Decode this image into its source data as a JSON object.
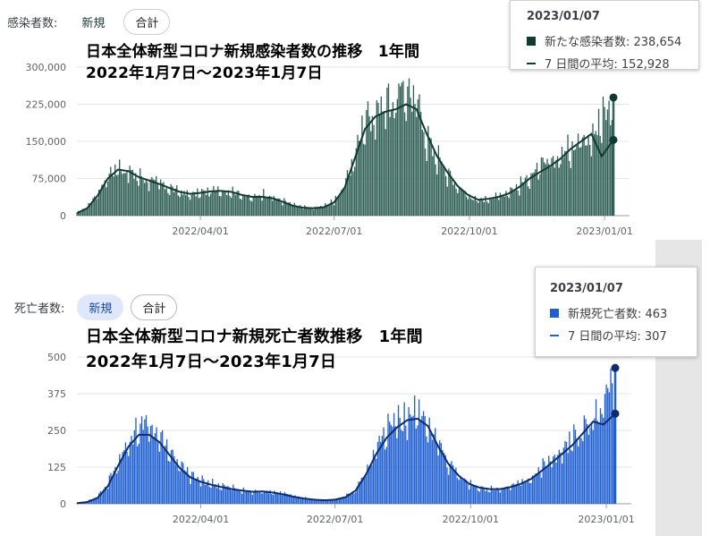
{
  "top": {
    "filter": {
      "label": "感染者数:",
      "chips": [
        "新規",
        "合計"
      ]
    },
    "title": [
      "日本全体新型コロナ新規感染者数の推移　1年間",
      "2022年1月7日～2023年1月7日"
    ],
    "tooltip": {
      "date": "2023/01/07",
      "rows": [
        {
          "label": "新たな感染者数: 238,654"
        },
        {
          "label": "7 日間の平均: 152,928"
        }
      ]
    }
  },
  "bottom": {
    "filter": {
      "label": "死亡者数:",
      "chips": [
        "新規",
        "合計"
      ]
    },
    "title": [
      "日本全体新型コロナ新規死亡者数推移　1年間",
      "2022年1月7日～2023年1月7日"
    ],
    "tooltip": {
      "date": "2023/01/07",
      "rows": [
        {
          "label": "新規死亡者数: 463"
        },
        {
          "label": "7 日間の平均: 307"
        }
      ]
    }
  },
  "colors": {
    "cases_bar": "#2f5f55",
    "cases_line": "#0f3b33",
    "deaths_bar": "#1f5fd1",
    "deaths_line": "#0d2c70"
  },
  "chart_data": [
    {
      "type": "bar",
      "title": "",
      "x_type": "date",
      "x_range": [
        "2022-01-07",
        "2023-01-07"
      ],
      "xticks": [
        "2022/04/01",
        "2022/07/01",
        "2022/10/01",
        "2023/01/01"
      ],
      "yticks": [
        "0",
        "75,000",
        "150,000",
        "225,000",
        "300,000"
      ],
      "ylim": [
        0,
        300000
      ],
      "series": [
        {
          "name": "新たな感染者数",
          "kind": "bar",
          "points": [
            [
              "2022-01-07",
              6000
            ],
            [
              "2022-01-14",
              18000
            ],
            [
              "2022-01-21",
              45000
            ],
            [
              "2022-01-28",
              80000
            ],
            [
              "2022-02-04",
              100000
            ],
            [
              "2022-02-11",
              88000
            ],
            [
              "2022-02-18",
              80000
            ],
            [
              "2022-02-25",
              72000
            ],
            [
              "2022-03-04",
              65000
            ],
            [
              "2022-03-11",
              56000
            ],
            [
              "2022-03-18",
              48000
            ],
            [
              "2022-03-25",
              42000
            ],
            [
              "2022-04-01",
              46000
            ],
            [
              "2022-04-08",
              50000
            ],
            [
              "2022-04-15",
              51000
            ],
            [
              "2022-04-22",
              50000
            ],
            [
              "2022-04-29",
              44000
            ],
            [
              "2022-05-06",
              35000
            ],
            [
              "2022-05-13",
              45000
            ],
            [
              "2022-05-20",
              38000
            ],
            [
              "2022-05-27",
              30000
            ],
            [
              "2022-06-03",
              22000
            ],
            [
              "2022-06-10",
              17000
            ],
            [
              "2022-06-17",
              15000
            ],
            [
              "2022-06-24",
              20000
            ],
            [
              "2022-07-01",
              30000
            ],
            [
              "2022-07-08",
              60000
            ],
            [
              "2022-07-15",
              120000
            ],
            [
              "2022-07-22",
              195000
            ],
            [
              "2022-07-29",
              215000
            ],
            [
              "2022-08-05",
              230000
            ],
            [
              "2022-08-12",
              235000
            ],
            [
              "2022-08-19",
              260000
            ],
            [
              "2022-08-26",
              230000
            ],
            [
              "2022-09-02",
              160000
            ],
            [
              "2022-09-09",
              120000
            ],
            [
              "2022-09-16",
              85000
            ],
            [
              "2022-09-23",
              58000
            ],
            [
              "2022-09-30",
              42000
            ],
            [
              "2022-10-07",
              30000
            ],
            [
              "2022-10-14",
              35000
            ],
            [
              "2022-10-21",
              40000
            ],
            [
              "2022-10-28",
              50000
            ],
            [
              "2022-11-04",
              60000
            ],
            [
              "2022-11-11",
              80000
            ],
            [
              "2022-11-18",
              95000
            ],
            [
              "2022-11-25",
              110000
            ],
            [
              "2022-12-02",
              120000
            ],
            [
              "2022-12-09",
              140000
            ],
            [
              "2022-12-16",
              160000
            ],
            [
              "2022-12-23",
              175000
            ],
            [
              "2022-12-30",
              190000
            ],
            [
              "2023-01-07",
              238654
            ]
          ]
        },
        {
          "name": "7 日間の平均",
          "kind": "line",
          "points": [
            [
              "2022-01-07",
              5000
            ],
            [
              "2022-01-14",
              15000
            ],
            [
              "2022-01-21",
              40000
            ],
            [
              "2022-01-28",
              75000
            ],
            [
              "2022-02-04",
              93000
            ],
            [
              "2022-02-11",
              90000
            ],
            [
              "2022-02-18",
              78000
            ],
            [
              "2022-02-25",
              71000
            ],
            [
              "2022-03-04",
              64000
            ],
            [
              "2022-03-11",
              56000
            ],
            [
              "2022-03-18",
              48000
            ],
            [
              "2022-03-25",
              44000
            ],
            [
              "2022-04-01",
              46000
            ],
            [
              "2022-04-08",
              49000
            ],
            [
              "2022-04-15",
              50000
            ],
            [
              "2022-04-22",
              48000
            ],
            [
              "2022-04-29",
              42000
            ],
            [
              "2022-05-06",
              38000
            ],
            [
              "2022-05-13",
              38000
            ],
            [
              "2022-05-20",
              35000
            ],
            [
              "2022-05-27",
              28000
            ],
            [
              "2022-06-03",
              20000
            ],
            [
              "2022-06-10",
              16000
            ],
            [
              "2022-06-17",
              15000
            ],
            [
              "2022-06-24",
              17000
            ],
            [
              "2022-07-01",
              27000
            ],
            [
              "2022-07-08",
              55000
            ],
            [
              "2022-07-15",
              115000
            ],
            [
              "2022-07-22",
              175000
            ],
            [
              "2022-07-29",
              200000
            ],
            [
              "2022-08-05",
              210000
            ],
            [
              "2022-08-12",
              215000
            ],
            [
              "2022-08-19",
              225000
            ],
            [
              "2022-08-26",
              215000
            ],
            [
              "2022-09-02",
              165000
            ],
            [
              "2022-09-09",
              120000
            ],
            [
              "2022-09-16",
              88000
            ],
            [
              "2022-09-23",
              60000
            ],
            [
              "2022-09-30",
              42000
            ],
            [
              "2022-10-07",
              32000
            ],
            [
              "2022-10-14",
              34000
            ],
            [
              "2022-10-21",
              38000
            ],
            [
              "2022-10-28",
              45000
            ],
            [
              "2022-11-04",
              58000
            ],
            [
              "2022-11-11",
              75000
            ],
            [
              "2022-11-18",
              88000
            ],
            [
              "2022-11-25",
              100000
            ],
            [
              "2022-12-02",
              115000
            ],
            [
              "2022-12-09",
              135000
            ],
            [
              "2022-12-16",
              150000
            ],
            [
              "2022-12-23",
              165000
            ],
            [
              "2022-12-30",
              120000
            ],
            [
              "2023-01-07",
              152928
            ]
          ]
        }
      ]
    },
    {
      "type": "bar",
      "title": "",
      "x_type": "date",
      "x_range": [
        "2022-01-07",
        "2023-01-07"
      ],
      "xticks": [
        "2022/04/01",
        "2022/07/01",
        "2022/10/01",
        "2023/01/01"
      ],
      "yticks": [
        "0",
        "125",
        "250",
        "375",
        "500"
      ],
      "ylim": [
        0,
        500
      ],
      "series": [
        {
          "name": "新規死亡者数",
          "kind": "bar",
          "points": [
            [
              "2022-01-07",
              2
            ],
            [
              "2022-01-14",
              8
            ],
            [
              "2022-01-21",
              25
            ],
            [
              "2022-01-28",
              70
            ],
            [
              "2022-02-04",
              140
            ],
            [
              "2022-02-11",
              210
            ],
            [
              "2022-02-18",
              260
            ],
            [
              "2022-02-25",
              270
            ],
            [
              "2022-03-04",
              230
            ],
            [
              "2022-03-11",
              180
            ],
            [
              "2022-03-18",
              130
            ],
            [
              "2022-03-25",
              95
            ],
            [
              "2022-04-01",
              80
            ],
            [
              "2022-04-08",
              70
            ],
            [
              "2022-04-15",
              60
            ],
            [
              "2022-04-22",
              55
            ],
            [
              "2022-04-29",
              45
            ],
            [
              "2022-05-06",
              40
            ],
            [
              "2022-05-13",
              45
            ],
            [
              "2022-05-20",
              40
            ],
            [
              "2022-05-27",
              35
            ],
            [
              "2022-06-03",
              25
            ],
            [
              "2022-06-10",
              20
            ],
            [
              "2022-06-17",
              15
            ],
            [
              "2022-06-24",
              12
            ],
            [
              "2022-07-01",
              15
            ],
            [
              "2022-07-08",
              25
            ],
            [
              "2022-07-15",
              50
            ],
            [
              "2022-07-22",
              110
            ],
            [
              "2022-07-29",
              180
            ],
            [
              "2022-08-05",
              240
            ],
            [
              "2022-08-12",
              270
            ],
            [
              "2022-08-19",
              300
            ],
            [
              "2022-08-26",
              310
            ],
            [
              "2022-09-02",
              280
            ],
            [
              "2022-09-09",
              200
            ],
            [
              "2022-09-16",
              140
            ],
            [
              "2022-09-23",
              100
            ],
            [
              "2022-09-30",
              70
            ],
            [
              "2022-10-07",
              55
            ],
            [
              "2022-10-14",
              50
            ],
            [
              "2022-10-21",
              50
            ],
            [
              "2022-10-28",
              60
            ],
            [
              "2022-11-04",
              70
            ],
            [
              "2022-11-11",
              90
            ],
            [
              "2022-11-18",
              120
            ],
            [
              "2022-11-25",
              150
            ],
            [
              "2022-12-02",
              180
            ],
            [
              "2022-12-09",
              210
            ],
            [
              "2022-12-16",
              250
            ],
            [
              "2022-12-23",
              290
            ],
            [
              "2022-12-30",
              330
            ],
            [
              "2023-01-07",
              463
            ]
          ]
        },
        {
          "name": "7 日間の平均",
          "kind": "line",
          "points": [
            [
              "2022-01-07",
              2
            ],
            [
              "2022-01-14",
              6
            ],
            [
              "2022-01-21",
              20
            ],
            [
              "2022-01-28",
              60
            ],
            [
              "2022-02-04",
              130
            ],
            [
              "2022-02-11",
              195
            ],
            [
              "2022-02-18",
              235
            ],
            [
              "2022-02-25",
              235
            ],
            [
              "2022-03-04",
              210
            ],
            [
              "2022-03-11",
              165
            ],
            [
              "2022-03-18",
              120
            ],
            [
              "2022-03-25",
              90
            ],
            [
              "2022-04-01",
              75
            ],
            [
              "2022-04-08",
              65
            ],
            [
              "2022-04-15",
              57
            ],
            [
              "2022-04-22",
              50
            ],
            [
              "2022-04-29",
              45
            ],
            [
              "2022-05-06",
              41
            ],
            [
              "2022-05-13",
              42
            ],
            [
              "2022-05-20",
              38
            ],
            [
              "2022-05-27",
              32
            ],
            [
              "2022-06-03",
              24
            ],
            [
              "2022-06-10",
              18
            ],
            [
              "2022-06-17",
              14
            ],
            [
              "2022-06-24",
              12
            ],
            [
              "2022-07-01",
              14
            ],
            [
              "2022-07-08",
              22
            ],
            [
              "2022-07-15",
              45
            ],
            [
              "2022-07-22",
              100
            ],
            [
              "2022-07-29",
              170
            ],
            [
              "2022-08-05",
              225
            ],
            [
              "2022-08-12",
              260
            ],
            [
              "2022-08-19",
              285
            ],
            [
              "2022-08-26",
              290
            ],
            [
              "2022-09-02",
              265
            ],
            [
              "2022-09-09",
              195
            ],
            [
              "2022-09-16",
              135
            ],
            [
              "2022-09-23",
              95
            ],
            [
              "2022-09-30",
              68
            ],
            [
              "2022-10-07",
              55
            ],
            [
              "2022-10-14",
              50
            ],
            [
              "2022-10-21",
              50
            ],
            [
              "2022-10-28",
              57
            ],
            [
              "2022-11-04",
              68
            ],
            [
              "2022-11-11",
              85
            ],
            [
              "2022-11-18",
              112
            ],
            [
              "2022-11-25",
              140
            ],
            [
              "2022-12-02",
              170
            ],
            [
              "2022-12-09",
              200
            ],
            [
              "2022-12-16",
              240
            ],
            [
              "2022-12-23",
              280
            ],
            [
              "2022-12-30",
              270
            ],
            [
              "2023-01-07",
              307
            ]
          ]
        }
      ]
    }
  ]
}
